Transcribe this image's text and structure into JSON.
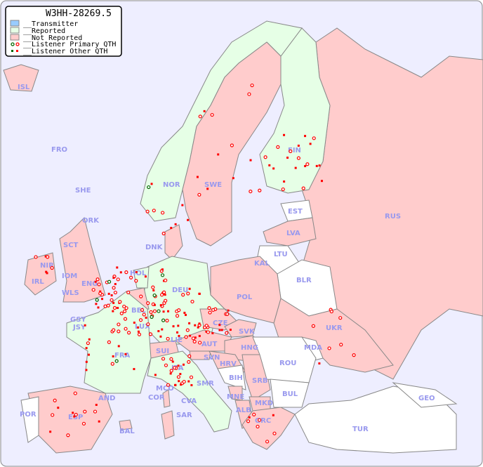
{
  "title": "W3HH-28269.5",
  "legend": {
    "transmitter": "__Transmitter",
    "reported": "__Reported",
    "not_reported": "__Not Reported",
    "primary": "__Listener Primary QTH",
    "other": "__Listener Other QTH"
  },
  "colors": {
    "sea": "#eeeeff",
    "transmitter": "#99ccff",
    "reported": "#e6ffe6",
    "not_reported": "#ffcccc",
    "no_data": "#ffffff",
    "listener_primary": "#ff0000",
    "listener_primary_alt": "#006600",
    "listener_other": "#ff0000",
    "border": "#888888",
    "label": "#9999ee"
  },
  "countries": [
    "ISL",
    "FRO",
    "SHE",
    "ORK",
    "NOR",
    "SWE",
    "FIN",
    "RUS",
    "EST",
    "LVA",
    "LTU",
    "KAL",
    "BLR",
    "DNK",
    "HOL",
    "BEL",
    "LUX",
    "DEU",
    "POL",
    "CZE",
    "SVK",
    "UKR",
    "MDA",
    "HNG",
    "AUT",
    "LIE",
    "SUI",
    "FRA",
    "GSY",
    "JSY",
    "IOM",
    "WLS",
    "ENG",
    "SCT",
    "NIR",
    "IRL",
    "SVN",
    "HRV",
    "BIH",
    "SRB",
    "ROU",
    "BUL",
    "MNE",
    "ALB",
    "MKD",
    "GRC",
    "TUR",
    "GEO",
    "ITA",
    "SMR",
    "CVA",
    "MCO",
    "COR",
    "SAR",
    "AND",
    "ESP",
    "POR",
    "BAL"
  ]
}
